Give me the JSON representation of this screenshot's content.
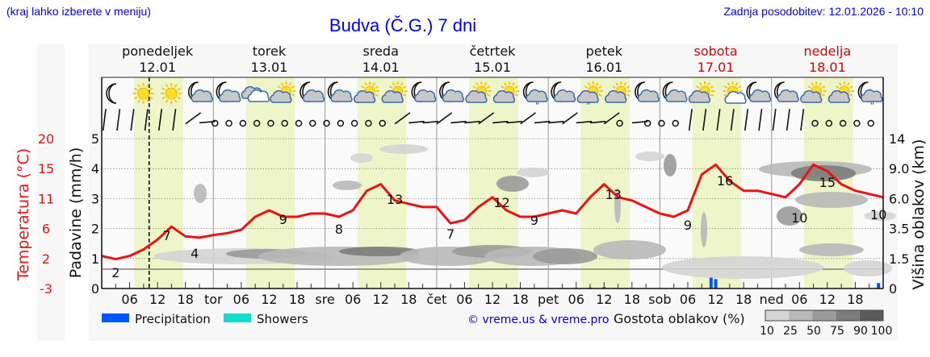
{
  "header": {
    "region_hint": "(kraj lahko izberete v meniju)",
    "last_update": "Zadnja posodobitev: 12.01.2026 - 10:10",
    "title": "Budva (Č.G.) 7 dni"
  },
  "days": [
    {
      "name": "ponedeljek",
      "date": "12.01",
      "weekend": false
    },
    {
      "name": "torek",
      "date": "13.01",
      "weekend": false
    },
    {
      "name": "sreda",
      "date": "14.01",
      "weekend": false
    },
    {
      "name": "četrtek",
      "date": "15.01",
      "weekend": false
    },
    {
      "name": "petek",
      "date": "16.01",
      "weekend": false
    },
    {
      "name": "sobota",
      "date": "17.01",
      "weekend": true
    },
    {
      "name": "nedelja",
      "date": "18.01",
      "weekend": true
    }
  ],
  "x_tick_labels": [
    "06",
    "12",
    "18",
    "tor",
    "06",
    "12",
    "18",
    "sre",
    "06",
    "12",
    "18",
    "čet",
    "06",
    "12",
    "18",
    "pet",
    "06",
    "12",
    "18",
    "sob",
    "06",
    "12",
    "18",
    "ned",
    "06",
    "12",
    "18"
  ],
  "axes": {
    "temperature_label": "Temperatura (°C)",
    "temperature_ticks": [
      "20",
      "15",
      "11",
      "6",
      "2",
      "-3"
    ],
    "precip_label": "Padavine (mm/h)",
    "precip_ticks": [
      "5",
      "4",
      "3",
      "2",
      "1",
      "0"
    ],
    "cloud_height_label": "Višina oblakov (km)",
    "cloud_height_ticks": [
      "14",
      "9.0",
      "6.0",
      "3.5",
      "1.5",
      "0"
    ]
  },
  "weather_icons": [
    "moon",
    "sun",
    "sun",
    "moon-cloud",
    "moon-cloud",
    "cloud",
    "sun-cloud",
    "moon-cloud",
    "moon-cloud",
    "sun-cloud",
    "sun-cloud",
    "moon-cloud",
    "moon-cloud",
    "sun-cloud",
    "sun-cloud",
    "moon-cloud-rain",
    "moon-cloud",
    "sun-cloud-rain",
    "sun-cloud",
    "moon-cloud",
    "moon-cloud",
    "sun-cloud",
    "sun-cloud-small",
    "moon-cloud",
    "moon-cloud",
    "sun-cloud",
    "sun-cloud",
    "moon-cloud-rain"
  ],
  "legend": {
    "precipitation": "Precipitation",
    "precipitation_color": "#0055ff",
    "showers": "Showers",
    "showers_color": "#11ddcc",
    "copyright": "© vreme.us & vreme.pro",
    "cloud_density_label": "Gostota oblakov (%)",
    "cloud_density_ticks": [
      "10",
      "25",
      "50",
      "75",
      "90",
      "100"
    ],
    "cloud_density_colors": [
      "#d4d4d4",
      "#b8b8b8",
      "#9a9a9a",
      "#7c7c7c",
      "#5c5c5c"
    ]
  },
  "colors": {
    "temperature_line": "#ee1111",
    "daylight_band": "#eef5c8",
    "weekend_text": "#dd0000",
    "link_blue": "#0000ee"
  },
  "chart_data": {
    "type": "line",
    "title": "Budva (Č.G.) 7 dni",
    "xlabel": "",
    "ylabel": "Temperatura (°C)",
    "ylim": [
      -3,
      20
    ],
    "series": [
      {
        "name": "Temperatura (°C)",
        "hours_from_start": [
          0,
          3,
          6,
          9,
          12,
          15,
          18,
          21,
          24,
          27,
          30,
          33,
          36,
          39,
          42,
          45,
          48,
          51,
          54,
          57,
          60,
          63,
          66,
          69,
          72,
          75,
          78,
          81,
          84,
          87,
          90,
          93,
          96,
          99,
          102,
          105,
          108,
          111,
          114,
          117,
          120,
          123,
          126,
          129,
          132,
          135,
          138,
          141,
          144,
          147,
          150,
          153,
          156,
          159,
          162,
          165,
          168
        ],
        "values": [
          2.0,
          1.5,
          2.0,
          3.0,
          4.5,
          6.5,
          5.0,
          4.8,
          5.2,
          5.5,
          6.0,
          8.0,
          9.0,
          8.0,
          8.0,
          8.5,
          8.5,
          8.0,
          9.0,
          12.0,
          13.0,
          10.5,
          10.0,
          9.5,
          9.5,
          7.0,
          7.5,
          9.5,
          11.0,
          9.0,
          8.0,
          8.0,
          8.5,
          9.0,
          8.5,
          11.0,
          13.0,
          11.0,
          10.5,
          9.5,
          8.5,
          8.0,
          9.0,
          14.5,
          16.0,
          13.5,
          12.0,
          12.0,
          11.5,
          11.0,
          13.0,
          16.0,
          15.0,
          13.0,
          12.0,
          11.5,
          11.0
        ]
      },
      {
        "name": "Precipitation (mm/h)",
        "hours_from_start": [
          102,
          105,
          108,
          131,
          132,
          167
        ],
        "values": [
          0.05,
          0.07,
          0.1,
          0.8,
          0.7,
          0.4
        ]
      }
    ],
    "point_labels": [
      {
        "hour": 3,
        "value": "2"
      },
      {
        "hour": 14,
        "value": "7"
      },
      {
        "hour": 20,
        "value": "4"
      },
      {
        "hour": 39,
        "value": "9"
      },
      {
        "hour": 51,
        "value": "8"
      },
      {
        "hour": 63,
        "value": "13"
      },
      {
        "hour": 75,
        "value": "7"
      },
      {
        "hour": 86,
        "value": "12"
      },
      {
        "hour": 93,
        "value": "9"
      },
      {
        "hour": 110,
        "value": "13"
      },
      {
        "hour": 126,
        "value": "9"
      },
      {
        "hour": 134,
        "value": "16"
      },
      {
        "hour": 150,
        "value": "10"
      },
      {
        "hour": 156,
        "value": "15"
      },
      {
        "hour": 167,
        "value": "10"
      }
    ],
    "now_marker_hour": 10.2,
    "grid": true,
    "legend_position": "bottom"
  }
}
